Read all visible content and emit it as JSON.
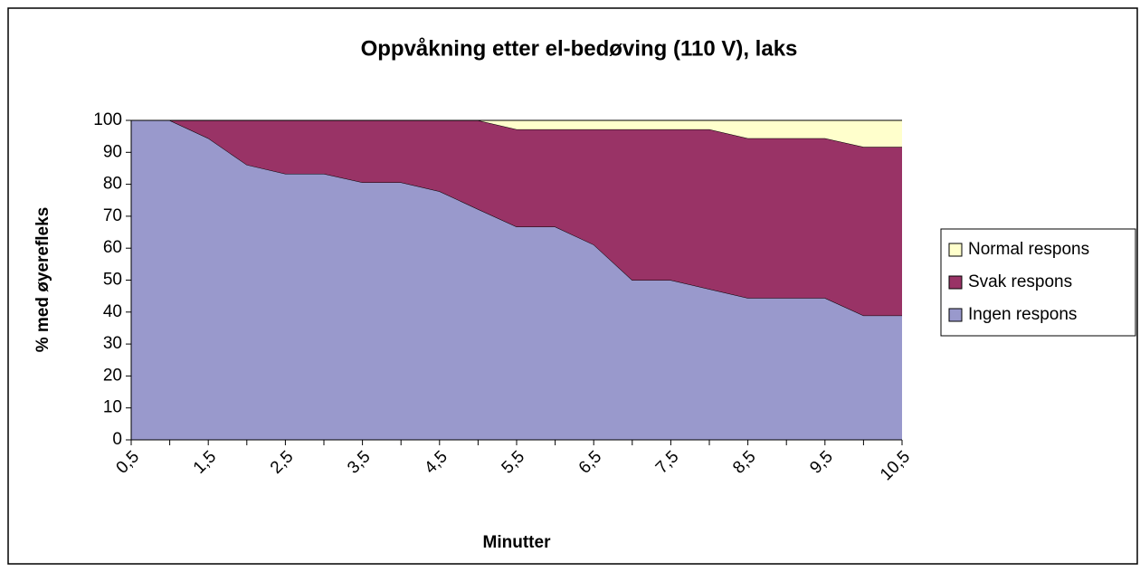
{
  "chart_data": {
    "type": "stacked_area",
    "title": "Oppvåkning etter el-bedøving (110 V), laks",
    "x_label": "Minutter",
    "y_label": "% med øyerefleks",
    "categories": [
      "0,5",
      null,
      "1,5",
      null,
      "2,5",
      null,
      "3,5",
      null,
      "4,5",
      null,
      "5,5",
      null,
      "6,5",
      null,
      "7,5",
      null,
      "8,5",
      null,
      "9,5",
      null,
      "10,5"
    ],
    "series": [
      {
        "name": "Ingen respons",
        "color": "#9999cc",
        "values": [
          100,
          100,
          94.4,
          86.1,
          83.3,
          83.3,
          80.6,
          80.6,
          77.8,
          72.2,
          66.7,
          66.7,
          61.1,
          50,
          50,
          47.2,
          44.4,
          44.4,
          44.4,
          38.9,
          38.9
        ]
      },
      {
        "name": "Svak respons",
        "color": "#993366",
        "values": [
          0,
          0,
          5.6,
          13.9,
          16.7,
          16.7,
          19.4,
          19.4,
          22.2,
          27.8,
          30.5,
          30.5,
          36.1,
          47.2,
          47.2,
          50,
          50,
          50,
          50,
          52.8,
          52.8
        ]
      },
      {
        "name": "Normal respons",
        "color": "#ffffcc",
        "values": [
          0,
          0,
          0,
          0,
          0,
          0,
          0,
          0,
          0,
          0,
          2.8,
          2.8,
          2.8,
          2.8,
          2.8,
          2.8,
          5.6,
          5.6,
          5.6,
          8.3,
          8.3
        ]
      }
    ],
    "ylim": [
      0,
      100
    ],
    "yticks": [
      0,
      10,
      20,
      30,
      40,
      50,
      60,
      70,
      80,
      90,
      100
    ],
    "legend": "right"
  }
}
